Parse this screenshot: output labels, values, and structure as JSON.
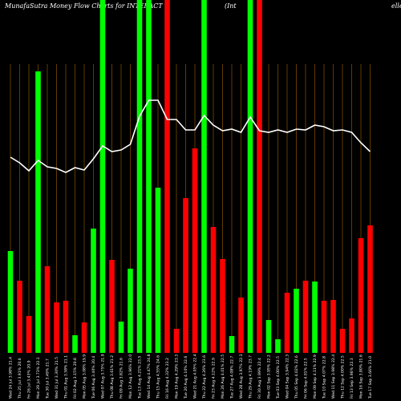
{
  "chart_data": {
    "type": "bar",
    "title": "MunafaSutra  Money Flow  Charts for INTERACT",
    "subtitle": "(Int",
    "subtitle_right": "elle",
    "categories": [
      "Wed 24 Jul 3.98% 21.4",
      "Thu 25 Jul 3.91% 20.6",
      "Fri 26 Jul 3.43% 20.9",
      "Mon 29 Jul 3.73% 22.1",
      "Tue 30 Jul 3.49% 21.7",
      "Wed 31 Jul 3.30% 21.5",
      "Thu 01 Aug 3.58% 21.1",
      "Fri 02 Aug 3.15% 20.8",
      "Mon 05 Aug 3.08% 19.9",
      "Tue 06 Aug 3.40% 20.4",
      "Wed 07 Aug 3.75% 21.9",
      "Thu 08 Aug 3.61% 21.2",
      "Fri 09 Aug 3.82% 21.6",
      "Mon 12 Aug 3.96% 22.0",
      "Tue 13 Aug 4.21% 23.5",
      "Wed 14 Aug 4.47% 24.8",
      "Thu 15 Aug 4.55% 24.6",
      "Fri 16 Aug 4.32% 23.2",
      "Mon 19 Aug 4.29% 23.3",
      "Tue 20 Aug 4.10% 22.6",
      "Wed 21 Aug 4.05% 22.4",
      "Thu 22 Aug 4.26% 23.6",
      "Fri 23 Aug 4.12% 22.9",
      "Mon 26 Aug 4.01% 22.5",
      "Tue 27 Aug 4.08% 22.7",
      "Wed 28 Aug 3.97% 22.3",
      "Thu 29 Aug 4.19% 23.7",
      "Fri 30 Aug 3.99% 22.4",
      "Mon 02 Sep 3.95% 22.2",
      "Tue 03 Sep 4.00% 22.5",
      "Wed 04 Sep 3.94% 22.3",
      "Thu 05 Sep 4.02% 22.6",
      "Fri 06 Sep 4.01% 22.5",
      "Mon 09 Sep 4.11% 22.9",
      "Tue 10 Sep 4.07% 22.8",
      "Wed 11 Sep 3.98% 22.4",
      "Thu 12 Sep 4.00% 22.5",
      "Fri 13 Sep 3.96% 22.3",
      "Mon 16 Sep 3.80% 21.6",
      "Tue 17 Sep 3.66% 21.0"
    ],
    "series": [
      {
        "name": "Money flow",
        "values": [
          127,
          90,
          46,
          351,
          108,
          63,
          65,
          22,
          38,
          155,
          440,
          116,
          39,
          105,
          440,
          440,
          206,
          440,
          30,
          193,
          255,
          440,
          157,
          117,
          21,
          69,
          440,
          440,
          41,
          17,
          75,
          80,
          90,
          89,
          65,
          66,
          30,
          43,
          143,
          159
        ],
        "colors": [
          "#00ff00",
          "#ff0000",
          "#ff0000",
          "#00ff00",
          "#ff0000",
          "#ff0000",
          "#ff0000",
          "#00ff00",
          "#ff0000",
          "#00ff00",
          "#00ff00",
          "#ff0000",
          "#00ff00",
          "#00ff00",
          "#00ff00",
          "#00ff00",
          "#00ff00",
          "#ff0000",
          "#ff0000",
          "#ff0000",
          "#ff0000",
          "#00ff00",
          "#ff0000",
          "#ff0000",
          "#00ff00",
          "#ff0000",
          "#00ff00",
          "#ff0000",
          "#00ff00",
          "#00ff00",
          "#ff0000",
          "#00ff00",
          "#ff0000",
          "#00ff00",
          "#ff0000",
          "#ff0000",
          "#ff0000",
          "#ff0000",
          "#ff0000",
          "#ff0000"
        ]
      },
      {
        "name": "Price",
        "type": "line",
        "color": "#ffffff",
        "values": [
          244,
          237,
          227,
          240,
          232,
          230,
          225,
          231,
          228,
          242,
          258,
          251,
          253,
          260,
          295,
          315,
          315,
          291,
          291,
          278,
          278,
          296,
          284,
          277,
          279,
          275,
          294,
          277,
          275,
          278,
          275,
          279,
          278,
          284,
          282,
          277,
          278,
          275,
          262,
          251
        ]
      }
    ],
    "ylim": [
      0,
      440
    ],
    "grid_color": "#7a4a00"
  }
}
